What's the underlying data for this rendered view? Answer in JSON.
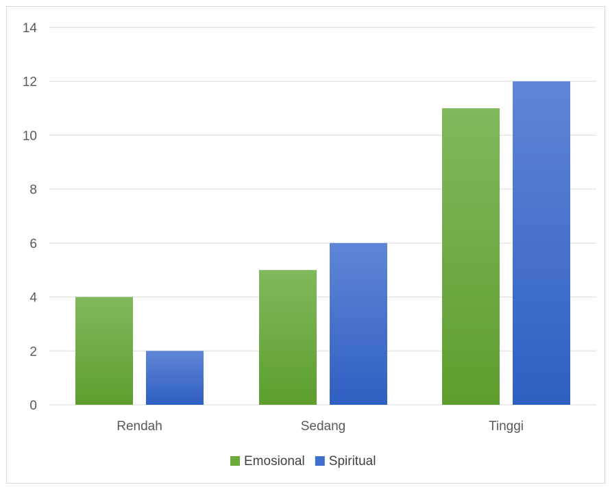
{
  "chart_data": {
    "type": "bar",
    "categories": [
      "Rendah",
      "Sedang",
      "Tinggi"
    ],
    "series": [
      {
        "name": "Emosional",
        "values": [
          4,
          5,
          11
        ],
        "color": "#6aab3c"
      },
      {
        "name": "Spiritual",
        "values": [
          2,
          6,
          12
        ],
        "color": "#3e6fca"
      }
    ],
    "ylim": [
      0,
      14
    ],
    "yticks": [
      0,
      2,
      4,
      6,
      8,
      10,
      12,
      14
    ],
    "grid": true,
    "legend": "bottom-center",
    "title": "",
    "xlabel": "",
    "ylabel": ""
  }
}
